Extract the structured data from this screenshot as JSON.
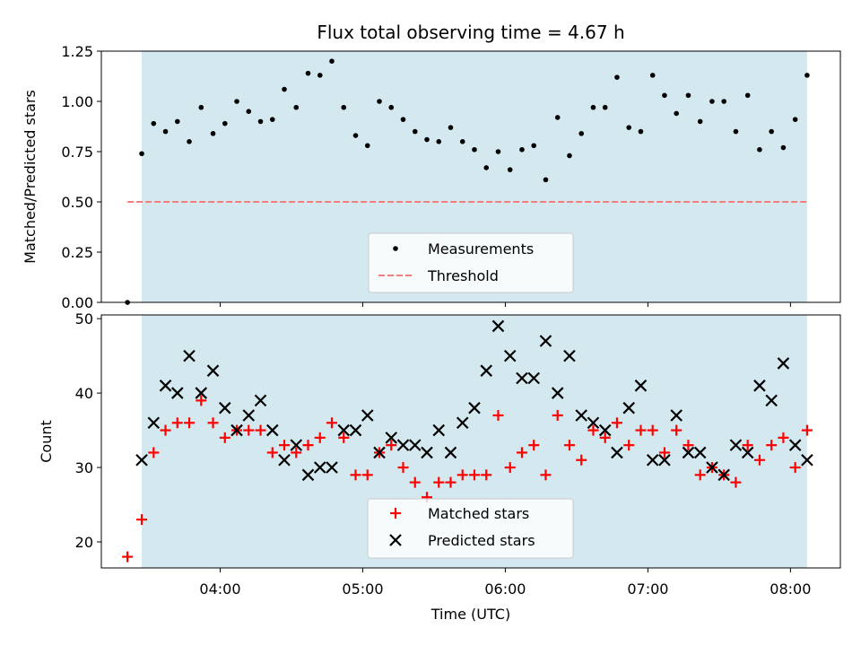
{
  "chart_data": [
    {
      "type": "scatter",
      "title": "Flux total observing time = 4.67 h",
      "xlabel": "",
      "ylabel": "Matched/Predicted stars",
      "ylim": [
        0,
        1.25
      ],
      "yticks": [
        "0.00",
        "0.25",
        "0.50",
        "0.75",
        "1.00",
        "1.25"
      ],
      "ytick_values": [
        0,
        0.25,
        0.5,
        0.75,
        1.0,
        1.25
      ],
      "shaded_span": [
        "03:27",
        "08:07"
      ],
      "shade_color": "#d3e9ef",
      "threshold": {
        "name": "Threshold",
        "y": 0.5,
        "x_range": [
          "03:21",
          "08:07"
        ],
        "color": "#f08080"
      },
      "legend": {
        "placement": "lower center",
        "entries": [
          "Measurements",
          "Threshold"
        ]
      },
      "series": [
        {
          "name": "Measurements",
          "color": "#000000",
          "marker": "dot",
          "x": [
            "03:21",
            "03:27",
            "03:32",
            "03:37",
            "03:42",
            "03:47",
            "03:52",
            "03:57",
            "04:02",
            "04:07",
            "04:12",
            "04:17",
            "04:22",
            "04:27",
            "04:32",
            "04:37",
            "04:42",
            "04:47",
            "04:52",
            "04:57",
            "05:02",
            "05:07",
            "05:12",
            "05:17",
            "05:22",
            "05:27",
            "05:32",
            "05:37",
            "05:42",
            "05:47",
            "05:52",
            "05:57",
            "06:02",
            "06:07",
            "06:12",
            "06:17",
            "06:22",
            "06:27",
            "06:32",
            "06:37",
            "06:42",
            "06:47",
            "06:52",
            "06:57",
            "07:02",
            "07:07",
            "07:12",
            "07:17",
            "07:22",
            "07:27",
            "07:32",
            "07:37",
            "07:42",
            "07:47",
            "07:52",
            "07:57",
            "08:02",
            "08:07"
          ],
          "y": [
            0.0,
            0.74,
            0.89,
            0.85,
            0.9,
            0.8,
            0.97,
            0.84,
            0.89,
            1.0,
            0.95,
            0.9,
            0.91,
            1.06,
            0.97,
            1.14,
            1.13,
            1.2,
            0.97,
            0.83,
            0.78,
            1.0,
            0.97,
            0.91,
            0.85,
            0.81,
            0.8,
            0.87,
            0.8,
            0.76,
            0.67,
            0.75,
            0.66,
            0.76,
            0.78,
            0.61,
            0.92,
            0.73,
            0.84,
            0.97,
            0.97,
            1.12,
            0.87,
            0.85,
            1.13,
            1.03,
            0.94,
            1.03,
            0.9,
            1.0,
            1.0,
            0.85,
            1.03,
            0.76,
            0.85,
            0.77,
            0.91,
            1.13
          ]
        }
      ]
    },
    {
      "type": "scatter",
      "title": "",
      "xlabel": "Time (UTC)",
      "ylabel": "Count",
      "ylim": [
        16.5,
        50.5
      ],
      "yticks": [
        "20",
        "30",
        "40",
        "50"
      ],
      "ytick_values": [
        20,
        30,
        40,
        50
      ],
      "xlim": [
        "03:10",
        "08:21"
      ],
      "xticks": [
        "04:00",
        "05:00",
        "06:00",
        "07:00",
        "08:00"
      ],
      "shaded_span": [
        "03:27",
        "08:07"
      ],
      "shade_color": "#d3e9ef",
      "legend": {
        "placement": "lower center",
        "entries": [
          "Matched stars",
          "Predicted stars"
        ]
      },
      "series": [
        {
          "name": "Matched stars",
          "color": "#ff0000",
          "marker": "plus",
          "x": [
            "03:21",
            "03:27",
            "03:32",
            "03:37",
            "03:42",
            "03:47",
            "03:52",
            "03:57",
            "04:02",
            "04:07",
            "04:12",
            "04:17",
            "04:22",
            "04:27",
            "04:32",
            "04:37",
            "04:42",
            "04:47",
            "04:52",
            "04:57",
            "05:02",
            "05:07",
            "05:12",
            "05:17",
            "05:22",
            "05:27",
            "05:32",
            "05:37",
            "05:42",
            "05:47",
            "05:52",
            "05:57",
            "06:02",
            "06:07",
            "06:12",
            "06:17",
            "06:22",
            "06:27",
            "06:32",
            "06:37",
            "06:42",
            "06:47",
            "06:52",
            "06:57",
            "07:02",
            "07:07",
            "07:12",
            "07:17",
            "07:22",
            "07:27",
            "07:32",
            "07:37",
            "07:42",
            "07:47",
            "07:52",
            "07:57",
            "08:02",
            "08:07"
          ],
          "y": [
            18,
            23,
            32,
            35,
            36,
            36,
            39,
            36,
            34,
            35,
            35,
            35,
            32,
            33,
            32,
            33,
            34,
            36,
            34,
            29,
            29,
            32,
            33,
            30,
            28,
            26,
            28,
            28,
            29,
            29,
            29,
            37,
            30,
            32,
            33,
            29,
            37,
            33,
            31,
            35,
            34,
            36,
            33,
            35,
            35,
            32,
            35,
            33,
            29,
            30,
            29,
            28,
            33,
            31,
            33,
            34,
            30,
            35
          ]
        },
        {
          "name": "Predicted stars",
          "color": "#000000",
          "marker": "x",
          "x": [
            "03:27",
            "03:32",
            "03:37",
            "03:42",
            "03:47",
            "03:52",
            "03:57",
            "04:02",
            "04:07",
            "04:12",
            "04:17",
            "04:22",
            "04:27",
            "04:32",
            "04:37",
            "04:42",
            "04:47",
            "04:52",
            "04:57",
            "05:02",
            "05:07",
            "05:12",
            "05:17",
            "05:22",
            "05:27",
            "05:32",
            "05:37",
            "05:42",
            "05:47",
            "05:52",
            "05:57",
            "06:02",
            "06:07",
            "06:12",
            "06:17",
            "06:22",
            "06:27",
            "06:32",
            "06:37",
            "06:42",
            "06:47",
            "06:52",
            "06:57",
            "07:02",
            "07:07",
            "07:12",
            "07:17",
            "07:22",
            "07:27",
            "07:32",
            "07:37",
            "07:42",
            "07:47",
            "07:52",
            "07:57",
            "08:02",
            "08:07"
          ],
          "y": [
            31,
            36,
            41,
            40,
            45,
            40,
            43,
            38,
            35,
            37,
            39,
            35,
            31,
            33,
            29,
            30,
            30,
            35,
            35,
            37,
            32,
            34,
            33,
            33,
            32,
            35,
            32,
            36,
            38,
            43,
            49,
            45,
            42,
            42,
            47,
            40,
            45,
            37,
            36,
            35,
            32,
            38,
            41,
            31,
            31,
            37,
            32,
            32,
            30,
            29,
            33,
            32,
            41,
            39,
            44,
            33,
            31
          ]
        }
      ]
    }
  ]
}
